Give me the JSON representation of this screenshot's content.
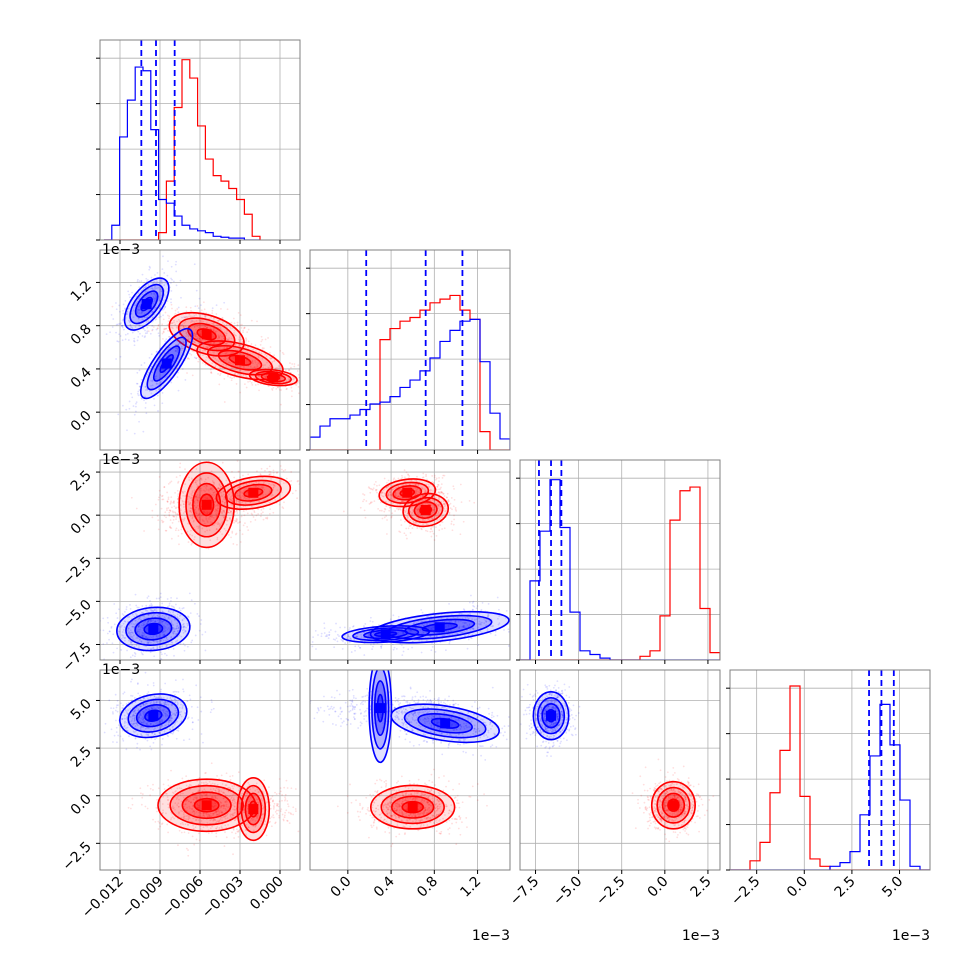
{
  "chart_data": {
    "type": "corner",
    "series_colors": {
      "red": "#ff0000",
      "blue": "#0000ff"
    },
    "panels_note": "4x4 lower-triangular corner plot of 4 parameters (p0..p3); diagonal = 1D histograms, lower = 2D densities with 0.5/1/1.5/2-sigma contours",
    "params": [
      {
        "id": "p0",
        "range": [
          -0.0135,
          0.0015
        ],
        "ticks": [
          -0.012,
          -0.009,
          -0.006,
          -0.003,
          0.0
        ],
        "tick_labels": [
          "−0.012",
          "−0.009",
          "−0.006",
          "−0.003",
          "0.000"
        ],
        "offset_label": ""
      },
      {
        "id": "p1",
        "range": [
          -0.35,
          1.5
        ],
        "ticks": [
          0.0,
          0.4,
          0.8,
          1.2
        ],
        "tick_labels": [
          "0.0",
          "0.4",
          "0.8",
          "1.2"
        ],
        "offset_label": "1e−3"
      },
      {
        "id": "p2",
        "range": [
          -8.4,
          3.2
        ],
        "ticks": [
          -7.5,
          -5.0,
          -2.5,
          0.0,
          2.5
        ],
        "tick_labels": [
          "−7.5",
          "−5.0",
          "−2.5",
          "0.0",
          "2.5"
        ],
        "offset_label": "1e−3"
      },
      {
        "id": "p3",
        "range": [
          -3.9,
          6.6
        ],
        "ticks": [
          -2.5,
          0.0,
          2.5,
          5.0
        ],
        "tick_labels": [
          "−2.5",
          "0.0",
          "2.5",
          "5.0"
        ],
        "offset_label": "1e−3"
      }
    ],
    "quantiles_blue": [
      [
        -0.0104,
        -0.0093,
        -0.0079
      ],
      [
        0.17,
        0.72,
        1.06
      ],
      [
        -7.3,
        -6.6,
        -6.0
      ],
      [
        3.4,
        4.05,
        4.7
      ]
    ],
    "blue": {
      "means": [
        -0.0092,
        0.75,
        -6.6,
        4.1
      ],
      "sds": [
        0.0015,
        0.35,
        0.65,
        0.55
      ],
      "pairs": {
        "1_0": [
          [
            -0.01,
            1.0,
            0.0009,
            0.13,
            0.6,
            0.55
          ],
          [
            -0.0085,
            0.45,
            0.0012,
            0.2,
            0.8,
            0.35
          ]
        ],
        "2_0": [
          [
            -0.0095,
            -6.6,
            0.0012,
            0.55,
            0.1,
            1.0
          ]
        ],
        "2_1": [
          [
            0.85,
            -6.5,
            0.32,
            0.45,
            0.45,
            0.7
          ],
          [
            0.35,
            -6.9,
            0.25,
            0.3,
            0.3,
            0.35
          ]
        ],
        "3_0": [
          [
            -0.0095,
            4.2,
            0.0011,
            0.5,
            0.2,
            1.0
          ]
        ],
        "3_1": [
          [
            0.9,
            3.8,
            0.25,
            0.5,
            -0.4,
            0.7
          ],
          [
            0.3,
            4.6,
            0.3,
            0.35,
            0.0,
            0.4
          ]
        ],
        "3_2": [
          [
            -6.6,
            4.2,
            0.45,
            0.55,
            0.0,
            1.0
          ]
        ]
      },
      "hist": [
        {
          "edges": [
            -0.0132,
            -0.0015
          ],
          "counts": [
            0.0,
            0.08,
            0.56,
            0.76,
            0.94,
            0.92,
            0.6,
            0.22,
            0.2,
            0.13,
            0.08,
            0.06,
            0.05,
            0.04,
            0.02,
            0.015,
            0.01,
            0.01,
            0.0,
            0.0
          ]
        },
        {
          "edges": [
            -0.35,
            1.5
          ],
          "counts": [
            0.07,
            0.13,
            0.17,
            0.17,
            0.19,
            0.22,
            0.25,
            0.26,
            0.29,
            0.34,
            0.38,
            0.43,
            0.5,
            0.59,
            0.65,
            0.7,
            0.71,
            0.48,
            0.2,
            0.06
          ]
        },
        {
          "edges": [
            -8.4,
            3.2
          ],
          "counts": [
            0.0,
            0.43,
            0.7,
            0.98,
            0.72,
            0.26,
            0.05,
            0.03,
            0.01,
            0.0,
            0.0,
            0.0,
            0.0,
            0.0,
            0.0,
            0.0,
            0.0,
            0.0,
            0.0,
            0.0
          ]
        },
        {
          "edges": [
            -3.9,
            6.6
          ],
          "counts": [
            0.0,
            0.0,
            0.0,
            0.0,
            0.0,
            0.0,
            0.0,
            0.0,
            0.0,
            0.0,
            0.02,
            0.04,
            0.1,
            0.3,
            0.62,
            0.9,
            0.68,
            0.38,
            0.02,
            0.0
          ]
        }
      ]
    },
    "red": {
      "means": [
        -0.0045,
        0.55,
        0.7,
        -0.5
      ],
      "sds": [
        0.0025,
        0.2,
        0.8,
        0.5
      ],
      "pairs": {
        "1_0": [
          [
            -0.0055,
            0.72,
            0.0014,
            0.1,
            -0.4,
            0.7
          ],
          [
            -0.003,
            0.48,
            0.0018,
            0.1,
            -0.5,
            0.5
          ],
          [
            -0.0005,
            0.32,
            0.0012,
            0.05,
            -0.3,
            0.25
          ]
        ],
        "2_0": [
          [
            -0.0055,
            0.6,
            0.0014,
            0.7,
            0.0,
            1.0
          ],
          [
            -0.002,
            1.3,
            0.0016,
            0.55,
            0.3,
            0.45
          ]
        ],
        "2_1": [
          [
            0.55,
            1.3,
            0.13,
            0.4,
            0.2,
            0.7
          ],
          [
            0.72,
            0.3,
            0.11,
            0.5,
            0.1,
            0.6
          ]
        ],
        "3_0": [
          [
            -0.0055,
            -0.5,
            0.0016,
            0.6,
            0.0,
            1.0
          ],
          [
            -0.002,
            -0.7,
            0.0014,
            0.5,
            0.0,
            0.4
          ]
        ],
        "3_1": [
          [
            0.6,
            -0.6,
            0.17,
            0.5,
            0.0,
            1.0
          ]
        ],
        "3_2": [
          [
            0.5,
            -0.5,
            0.6,
            0.5,
            0.0,
            1.0
          ]
        ]
      },
      "hist": [
        {
          "edges": [
            -0.0132,
            -0.0015
          ],
          "counts": [
            0.0,
            0.0,
            0.0,
            0.0,
            0.0,
            0.0,
            0.0,
            0.04,
            0.32,
            0.72,
            0.98,
            0.88,
            0.62,
            0.44,
            0.35,
            0.32,
            0.28,
            0.22,
            0.14,
            0.02
          ]
        },
        {
          "edges": [
            -0.35,
            1.5
          ],
          "counts": [
            0.0,
            0.0,
            0.0,
            0.0,
            0.0,
            0.0,
            0.0,
            0.6,
            0.66,
            0.7,
            0.72,
            0.76,
            0.8,
            0.82,
            0.84,
            0.76,
            0.71,
            0.1,
            0.0,
            0.0
          ]
        },
        {
          "edges": [
            -8.4,
            3.2
          ],
          "counts": [
            0.0,
            0.0,
            0.0,
            0.0,
            0.0,
            0.0,
            0.0,
            0.0,
            0.0,
            0.0,
            0.0,
            0.0,
            0.02,
            0.05,
            0.24,
            0.76,
            0.92,
            0.94,
            0.28,
            0.04
          ]
        },
        {
          "edges": [
            -3.9,
            6.6
          ],
          "counts": [
            0.0,
            0.0,
            0.05,
            0.15,
            0.42,
            0.65,
            1.0,
            0.4,
            0.06,
            0.02,
            0.0,
            0.0,
            0.0,
            0.0,
            0.0,
            0.0,
            0.0,
            0.0,
            0.0,
            0.0
          ]
        }
      ]
    },
    "axes_grid": true,
    "contour_levels_sigma": [
      0.5,
      1.0,
      1.5,
      2.0
    ]
  }
}
